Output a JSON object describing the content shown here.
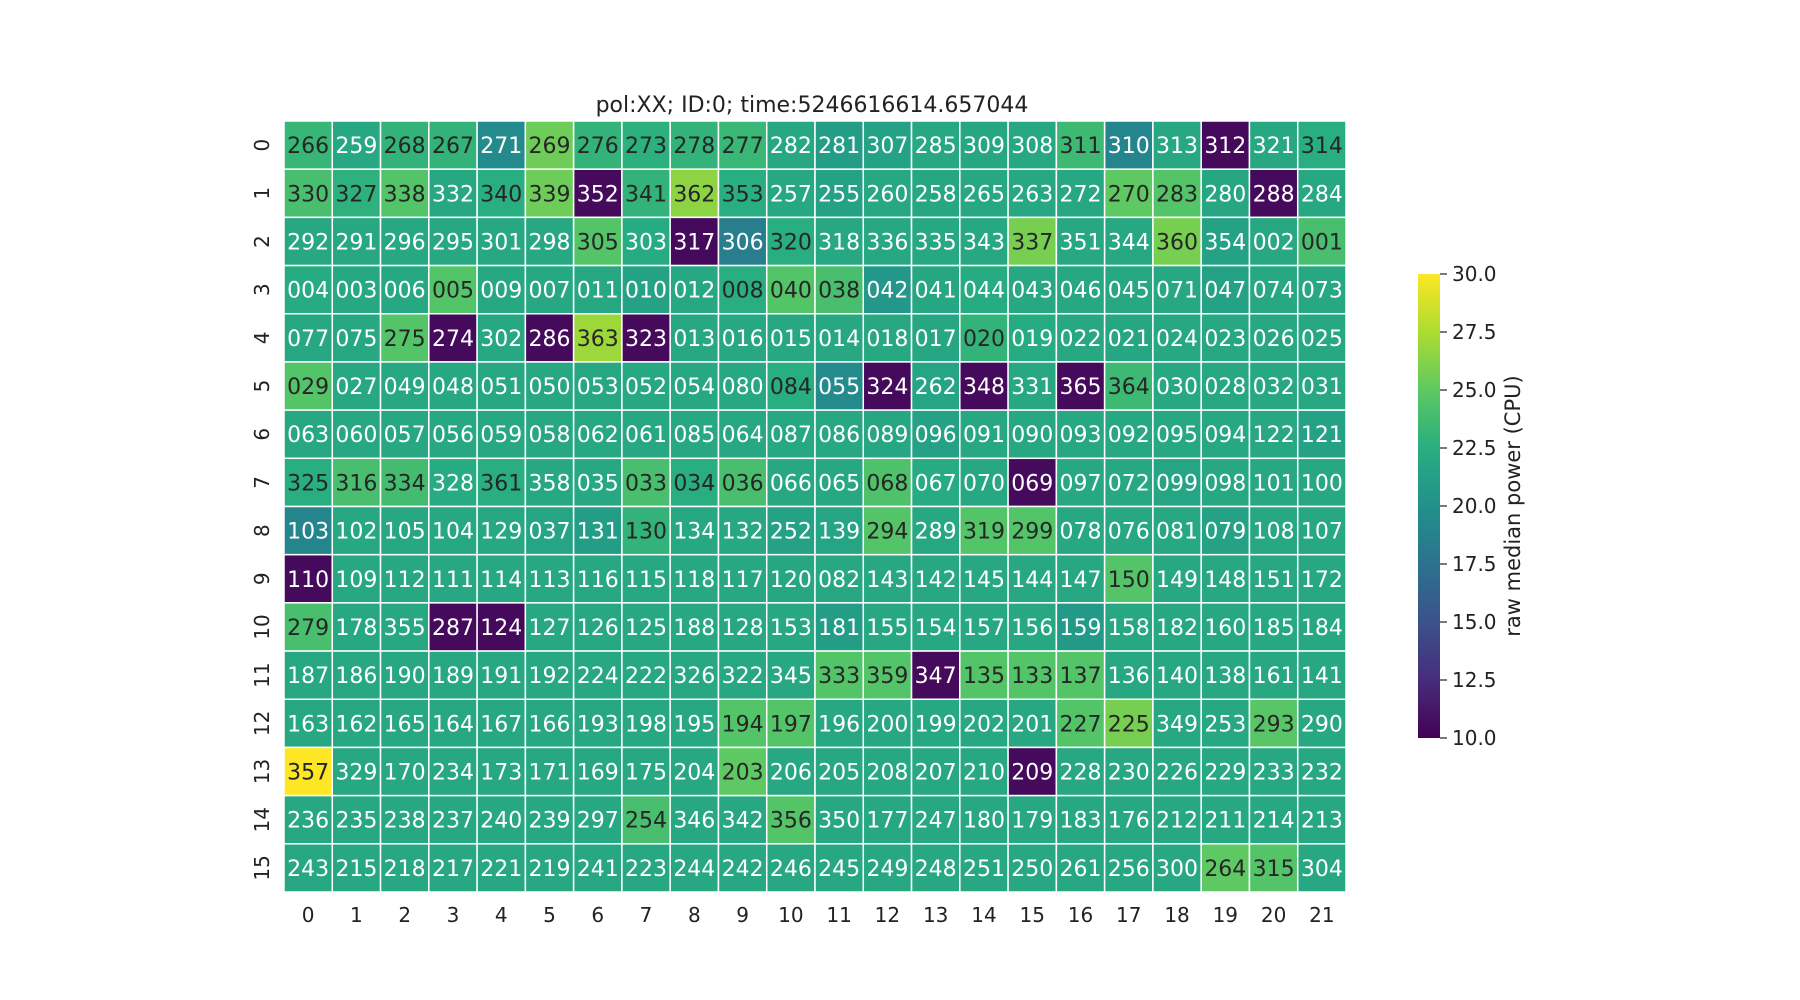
{
  "chart_data": {
    "type": "heatmap",
    "title": "pol:XX; ID:0; time:5246616614.657044",
    "colorbar": {
      "label": "raw median power (CPU)",
      "range": [
        10.0,
        30.0
      ],
      "ticks": [
        "10.0",
        "12.5",
        "15.0",
        "17.5",
        "20.0",
        "22.5",
        "25.0",
        "27.5",
        "30.0"
      ]
    },
    "x_ticks": [
      "0",
      "1",
      "2",
      "3",
      "4",
      "5",
      "6",
      "7",
      "8",
      "9",
      "10",
      "11",
      "12",
      "13",
      "14",
      "15",
      "16",
      "17",
      "18",
      "19",
      "20",
      "21"
    ],
    "y_ticks": [
      "0",
      "1",
      "2",
      "3",
      "4",
      "5",
      "6",
      "7",
      "8",
      "9",
      "10",
      "11",
      "12",
      "13",
      "14",
      "15"
    ],
    "labels": [
      [
        "266",
        "259",
        "268",
        "267",
        "271",
        "269",
        "276",
        "273",
        "278",
        "277",
        "282",
        "281",
        "307",
        "285",
        "309",
        "308",
        "311",
        "310",
        "313",
        "312",
        "321",
        "314"
      ],
      [
        "330",
        "327",
        "338",
        "332",
        "340",
        "339",
        "352",
        "341",
        "362",
        "353",
        "257",
        "255",
        "260",
        "258",
        "265",
        "263",
        "272",
        "270",
        "283",
        "280",
        "288",
        "284"
      ],
      [
        "292",
        "291",
        "296",
        "295",
        "301",
        "298",
        "305",
        "303",
        "317",
        "306",
        "320",
        "318",
        "336",
        "335",
        "343",
        "337",
        "351",
        "344",
        "360",
        "354",
        "002",
        "001"
      ],
      [
        "004",
        "003",
        "006",
        "005",
        "009",
        "007",
        "011",
        "010",
        "012",
        "008",
        "040",
        "038",
        "042",
        "041",
        "044",
        "043",
        "046",
        "045",
        "071",
        "047",
        "074",
        "073"
      ],
      [
        "077",
        "075",
        "275",
        "274",
        "302",
        "286",
        "363",
        "323",
        "013",
        "016",
        "015",
        "014",
        "018",
        "017",
        "020",
        "019",
        "022",
        "021",
        "024",
        "023",
        "026",
        "025"
      ],
      [
        "029",
        "027",
        "049",
        "048",
        "051",
        "050",
        "053",
        "052",
        "054",
        "080",
        "084",
        "055",
        "324",
        "262",
        "348",
        "331",
        "365",
        "364",
        "030",
        "028",
        "032",
        "031"
      ],
      [
        "063",
        "060",
        "057",
        "056",
        "059",
        "058",
        "062",
        "061",
        "085",
        "064",
        "087",
        "086",
        "089",
        "096",
        "091",
        "090",
        "093",
        "092",
        "095",
        "094",
        "122",
        "121"
      ],
      [
        "325",
        "316",
        "334",
        "328",
        "361",
        "358",
        "035",
        "033",
        "034",
        "036",
        "066",
        "065",
        "068",
        "067",
        "070",
        "069",
        "097",
        "072",
        "099",
        "098",
        "101",
        "100"
      ],
      [
        "103",
        "102",
        "105",
        "104",
        "129",
        "037",
        "131",
        "130",
        "134",
        "132",
        "252",
        "139",
        "294",
        "289",
        "319",
        "299",
        "078",
        "076",
        "081",
        "079",
        "108",
        "107"
      ],
      [
        "110",
        "109",
        "112",
        "111",
        "114",
        "113",
        "116",
        "115",
        "118",
        "117",
        "120",
        "082",
        "143",
        "142",
        "145",
        "144",
        "147",
        "150",
        "149",
        "148",
        "151",
        "172"
      ],
      [
        "279",
        "178",
        "355",
        "287",
        "124",
        "127",
        "126",
        "125",
        "188",
        "128",
        "153",
        "181",
        "155",
        "154",
        "157",
        "156",
        "159",
        "158",
        "182",
        "160",
        "185",
        "184"
      ],
      [
        "187",
        "186",
        "190",
        "189",
        "191",
        "192",
        "224",
        "222",
        "326",
        "322",
        "345",
        "333",
        "359",
        "347",
        "135",
        "133",
        "137",
        "136",
        "140",
        "138",
        "161",
        "141"
      ],
      [
        "163",
        "162",
        "165",
        "164",
        "167",
        "166",
        "193",
        "198",
        "195",
        "194",
        "197",
        "196",
        "200",
        "199",
        "202",
        "201",
        "227",
        "225",
        "349",
        "253",
        "293",
        "290"
      ],
      [
        "357",
        "329",
        "170",
        "234",
        "173",
        "171",
        "169",
        "175",
        "204",
        "203",
        "206",
        "205",
        "208",
        "207",
        "210",
        "209",
        "228",
        "230",
        "226",
        "229",
        "233",
        "232"
      ],
      [
        "236",
        "235",
        "238",
        "237",
        "240",
        "239",
        "297",
        "254",
        "346",
        "342",
        "356",
        "350",
        "177",
        "247",
        "180",
        "179",
        "183",
        "176",
        "212",
        "211",
        "214",
        "213"
      ],
      [
        "243",
        "215",
        "218",
        "217",
        "221",
        "219",
        "241",
        "223",
        "244",
        "242",
        "246",
        "245",
        "249",
        "248",
        "251",
        "250",
        "261",
        "256",
        "300",
        "264",
        "315",
        "304"
      ]
    ],
    "values": [
      [
        23.2,
        22.0,
        23.0,
        23.0,
        19.5,
        25.5,
        23.0,
        22.7,
        23.0,
        23.3,
        22.0,
        21.0,
        21.5,
        22.0,
        21.8,
        22.0,
        23.5,
        19.0,
        22.0,
        10.5,
        22.0,
        22.5
      ],
      [
        24.0,
        22.8,
        24.5,
        22.0,
        22.5,
        25.5,
        10.5,
        23.0,
        26.5,
        22.5,
        22.0,
        21.5,
        22.0,
        21.8,
        22.0,
        22.0,
        22.0,
        25.0,
        24.5,
        21.8,
        10.5,
        22.0
      ],
      [
        22.0,
        22.0,
        22.0,
        22.0,
        22.0,
        22.0,
        24.5,
        22.2,
        10.5,
        18.5,
        22.5,
        22.0,
        22.0,
        22.0,
        22.0,
        25.8,
        22.0,
        22.0,
        25.8,
        21.5,
        22.0,
        24.0
      ],
      [
        22.2,
        22.0,
        22.0,
        24.5,
        22.0,
        22.0,
        22.0,
        21.5,
        22.0,
        22.5,
        24.5,
        24.0,
        20.5,
        21.8,
        22.3,
        22.0,
        22.0,
        22.0,
        22.0,
        21.5,
        22.0,
        22.0
      ],
      [
        22.0,
        22.0,
        24.5,
        10.5,
        22.0,
        10.5,
        27.0,
        10.5,
        22.0,
        22.0,
        22.0,
        22.0,
        22.0,
        21.8,
        23.0,
        22.3,
        22.0,
        21.8,
        22.0,
        22.0,
        22.0,
        22.0
      ],
      [
        24.5,
        22.0,
        22.0,
        22.0,
        22.0,
        22.0,
        22.0,
        22.0,
        22.0,
        22.0,
        22.5,
        19.5,
        10.5,
        21.7,
        10.5,
        22.0,
        10.5,
        23.5,
        22.0,
        22.0,
        22.0,
        22.0
      ],
      [
        22.0,
        22.0,
        22.0,
        22.0,
        22.0,
        22.0,
        22.0,
        22.0,
        22.0,
        22.0,
        22.0,
        22.0,
        21.8,
        21.5,
        22.0,
        22.0,
        22.0,
        22.0,
        22.0,
        22.0,
        22.0,
        21.5
      ],
      [
        22.5,
        24.0,
        23.8,
        22.2,
        22.5,
        22.0,
        22.0,
        24.0,
        22.5,
        24.0,
        22.0,
        22.0,
        24.3,
        22.2,
        22.0,
        10.5,
        22.0,
        22.0,
        21.7,
        22.0,
        22.0,
        22.0
      ],
      [
        19.0,
        22.0,
        22.0,
        22.0,
        22.0,
        21.7,
        21.0,
        23.0,
        22.0,
        22.0,
        21.5,
        21.7,
        24.5,
        22.0,
        24.5,
        24.5,
        22.0,
        22.0,
        22.0,
        21.5,
        22.0,
        22.0
      ],
      [
        10.5,
        22.0,
        22.0,
        22.0,
        22.0,
        22.0,
        22.0,
        22.0,
        22.0,
        22.0,
        21.8,
        22.0,
        22.0,
        22.0,
        22.0,
        22.0,
        22.0,
        24.5,
        22.0,
        22.0,
        22.0,
        22.0
      ],
      [
        24.0,
        22.0,
        22.0,
        10.5,
        10.5,
        22.0,
        22.0,
        22.0,
        22.0,
        22.0,
        22.0,
        21.0,
        22.0,
        22.0,
        22.0,
        22.0,
        20.8,
        22.0,
        22.0,
        22.0,
        22.0,
        22.0
      ],
      [
        22.0,
        22.0,
        22.0,
        22.0,
        22.0,
        22.0,
        22.0,
        22.0,
        22.0,
        22.0,
        22.0,
        24.5,
        24.5,
        10.5,
        24.5,
        24.5,
        24.5,
        22.0,
        22.0,
        22.0,
        22.0,
        22.0
      ],
      [
        22.0,
        22.0,
        22.0,
        22.0,
        22.0,
        22.0,
        22.0,
        22.0,
        22.0,
        24.5,
        24.5,
        22.0,
        22.0,
        22.0,
        22.0,
        22.0,
        24.5,
        25.8,
        22.0,
        22.0,
        24.7,
        22.0
      ],
      [
        30.0,
        22.0,
        22.0,
        22.0,
        22.0,
        22.0,
        22.0,
        22.0,
        22.0,
        25.0,
        22.0,
        22.0,
        22.0,
        22.0,
        22.0,
        10.5,
        22.0,
        22.0,
        22.0,
        22.0,
        22.0,
        22.0
      ],
      [
        22.0,
        22.0,
        22.0,
        22.0,
        22.0,
        22.0,
        22.0,
        24.0,
        22.0,
        22.0,
        24.5,
        22.0,
        22.0,
        22.0,
        22.0,
        22.0,
        22.0,
        22.0,
        22.0,
        22.0,
        22.0,
        22.0
      ],
      [
        22.0,
        22.0,
        22.0,
        22.0,
        22.0,
        22.0,
        22.0,
        22.0,
        22.0,
        22.0,
        22.0,
        22.0,
        22.0,
        22.0,
        22.0,
        22.0,
        22.0,
        22.0,
        22.0,
        25.0,
        24.5,
        22.0
      ]
    ]
  }
}
